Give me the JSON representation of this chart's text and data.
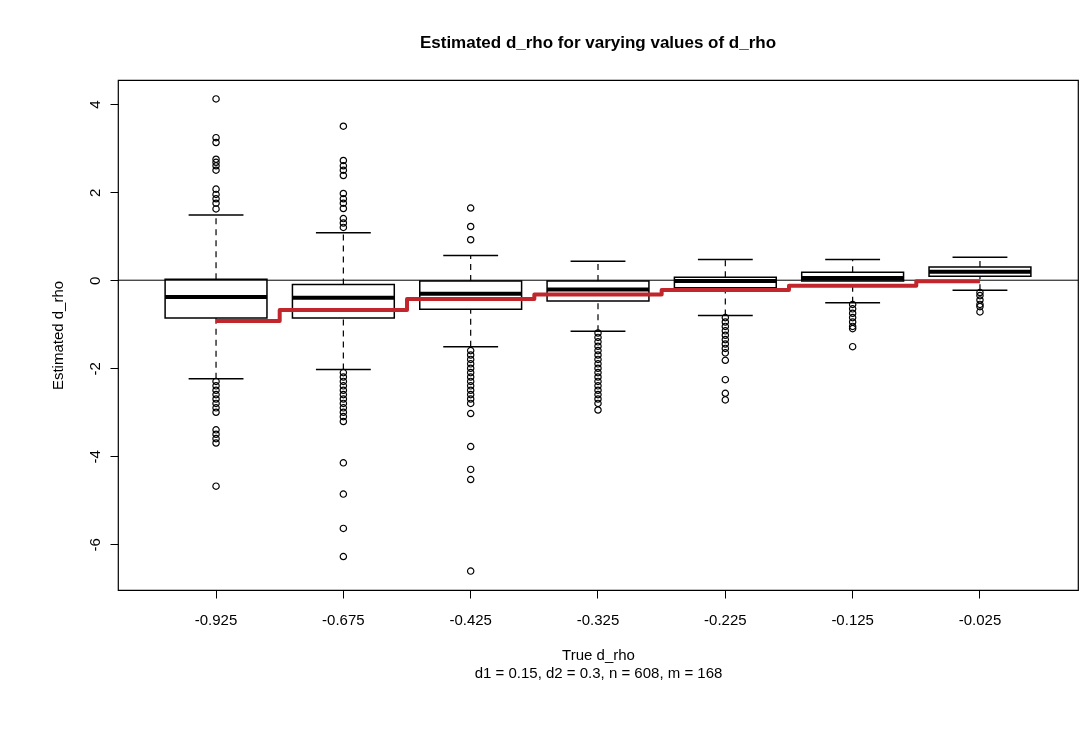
{
  "chart_data": {
    "type": "box",
    "title": "Estimated d_rho for varying values of d_rho",
    "xlabel": "True d_rho",
    "ylabel": "Estimated d_rho",
    "annotations": [
      "d1  = 0.15, d2 = 0.3, n = 608, m = 168"
    ],
    "categories": [
      "-0.925",
      "-0.675",
      "-0.425",
      "-0.325",
      "-0.225",
      "-0.125",
      "-0.025"
    ],
    "ylim": [
      -7.04,
      4.55
    ],
    "yticks": [
      -6,
      -4,
      -2,
      0,
      2,
      4
    ],
    "grid": false,
    "boxes": [
      {
        "low": -2.24,
        "q1": -0.86,
        "median": -0.38,
        "q3": 0.02,
        "high": 1.48,
        "outliers": [
          4.12,
          3.24,
          3.13,
          2.75,
          2.68,
          2.6,
          2.5,
          2.07,
          1.95,
          1.85,
          1.75,
          1.62,
          -2.3,
          -2.4,
          -2.5,
          -2.6,
          -2.7,
          -2.8,
          -2.9,
          -3.0,
          -3.4,
          -3.5,
          -3.6,
          -3.7,
          -4.68
        ]
      },
      {
        "low": -2.03,
        "q1": -0.86,
        "median": -0.4,
        "q3": -0.1,
        "high": 1.08,
        "outliers": [
          3.5,
          2.72,
          2.6,
          2.5,
          2.38,
          1.97,
          1.85,
          1.75,
          1.63,
          1.4,
          1.3,
          1.2,
          -2.1,
          -2.2,
          -2.3,
          -2.4,
          -2.5,
          -2.6,
          -2.7,
          -2.8,
          -2.9,
          -3.0,
          -3.1,
          -3.21,
          -4.15,
          -4.86,
          -5.64,
          -6.28
        ]
      },
      {
        "low": -1.51,
        "q1": -0.66,
        "median": -0.31,
        "q3": -0.02,
        "high": 0.56,
        "outliers": [
          1.64,
          1.22,
          0.92,
          -1.6,
          -1.7,
          -1.8,
          -1.9,
          -2.0,
          -2.1,
          -2.2,
          -2.3,
          -2.4,
          -2.5,
          -2.6,
          -2.7,
          -2.8,
          -3.03,
          -3.78,
          -4.3,
          -4.53,
          -6.61
        ]
      },
      {
        "low": -1.16,
        "q1": -0.47,
        "median": -0.21,
        "q3": -0.02,
        "high": 0.43,
        "outliers": [
          -1.2,
          -1.3,
          -1.4,
          -1.5,
          -1.6,
          -1.7,
          -1.8,
          -1.9,
          -2.0,
          -2.1,
          -2.2,
          -2.3,
          -2.4,
          -2.5,
          -2.6,
          -2.7,
          -2.8,
          -2.95
        ]
      },
      {
        "low": -0.8,
        "q1": -0.17,
        "median": -0.02,
        "q3": 0.07,
        "high": 0.47,
        "outliers": [
          -0.85,
          -0.95,
          -1.05,
          -1.15,
          -1.25,
          -1.35,
          -1.45,
          -1.55,
          -1.65,
          -1.82,
          -2.26,
          -2.57,
          -2.72
        ]
      },
      {
        "low": -0.51,
        "q1": -0.02,
        "median": 0.05,
        "q3": 0.18,
        "high": 0.47,
        "outliers": [
          -0.55,
          -0.65,
          -0.75,
          -0.85,
          -0.95,
          -1.05,
          -1.1,
          -1.51
        ]
      },
      {
        "low": -0.23,
        "q1": 0.09,
        "median": 0.19,
        "q3": 0.3,
        "high": 0.52,
        "outliers": [
          -0.28,
          -0.35,
          -0.45,
          -0.55,
          -0.6,
          -0.72
        ]
      }
    ],
    "series": [
      {
        "type": "step",
        "color": "#c0262c",
        "values": [
          -0.925,
          -0.675,
          -0.425,
          -0.325,
          -0.225,
          -0.125,
          -0.025
        ]
      }
    ],
    "ref_lines": [
      {
        "axis": "y",
        "value": 0,
        "color": "#000000"
      }
    ]
  }
}
